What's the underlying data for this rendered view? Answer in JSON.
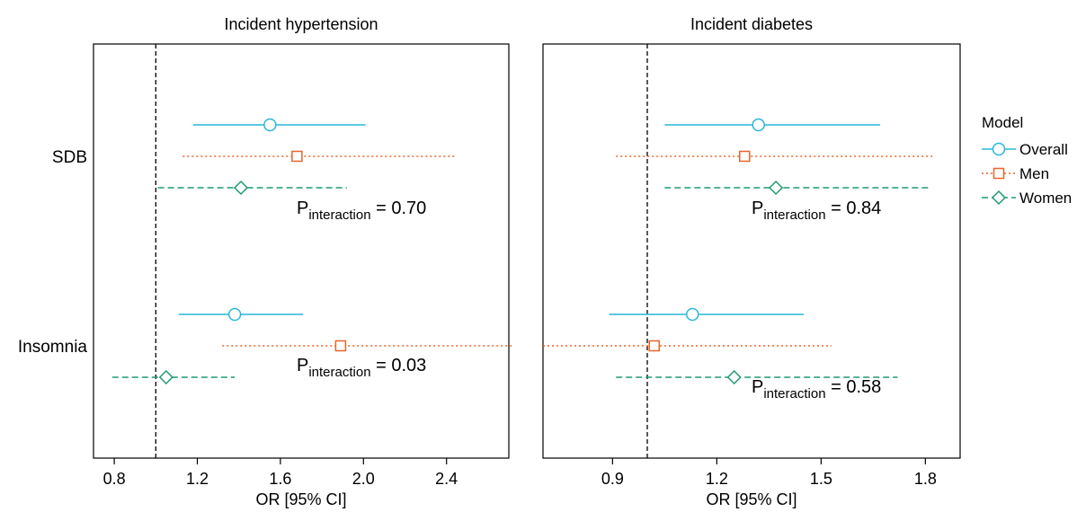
{
  "colors": {
    "overall": "#29B7D9",
    "men": "#E8652A",
    "women": "#1E9A72",
    "axis": "#000000"
  },
  "rows": [
    "SDB",
    "Insomnia"
  ],
  "legend": {
    "title": "Model",
    "items": [
      {
        "label": "Overall",
        "marker": "circle",
        "line": "solid",
        "color": "#29B7D9"
      },
      {
        "label": "Men",
        "marker": "square",
        "line": "dotted",
        "color": "#E8652A"
      },
      {
        "label": "Women",
        "marker": "diamond",
        "line": "dashed",
        "color": "#1E9A72"
      }
    ],
    "placement": "right"
  },
  "chart_data": [
    {
      "type": "forest",
      "title": "Incident hypertension",
      "xlabel": "OR [95% CI]",
      "xlim": [
        0.7,
        2.7
      ],
      "xticks": [
        0.8,
        1.2,
        1.6,
        2.0,
        2.4
      ],
      "xtick_labels": [
        "0.8",
        "1.2",
        "1.6",
        "2.0",
        "2.4"
      ],
      "reference_line": 1.0,
      "groups": [
        {
          "row": "SDB",
          "points": [
            {
              "model": "Overall",
              "or": 1.55,
              "lo": 1.18,
              "hi": 2.01
            },
            {
              "model": "Men",
              "or": 1.68,
              "lo": 1.13,
              "hi": 2.44
            },
            {
              "model": "Women",
              "or": 1.41,
              "lo": 1.01,
              "hi": 1.92
            }
          ],
          "p_prefix": "P",
          "p_sub": "interaction",
          "p_value": " = 0.70"
        },
        {
          "row": "Insomnia",
          "points": [
            {
              "model": "Overall",
              "or": 1.38,
              "lo": 1.11,
              "hi": 1.71
            },
            {
              "model": "Men",
              "or": 1.89,
              "lo": 1.32,
              "hi": 2.72
            },
            {
              "model": "Women",
              "or": 1.05,
              "lo": 0.79,
              "hi": 1.38
            }
          ],
          "p_prefix": "P",
          "p_sub": "interaction",
          "p_value": " = 0.03"
        }
      ]
    },
    {
      "type": "forest",
      "title": "Incident diabetes",
      "xlabel": "OR [95% CI]",
      "xlim": [
        0.7,
        1.9
      ],
      "xticks": [
        0.9,
        1.2,
        1.5,
        1.8
      ],
      "xtick_labels": [
        "0.9",
        "1.2",
        "1.5",
        "1.8"
      ],
      "reference_line": 1.0,
      "groups": [
        {
          "row": "SDB",
          "points": [
            {
              "model": "Overall",
              "or": 1.32,
              "lo": 1.05,
              "hi": 1.67
            },
            {
              "model": "Men",
              "or": 1.28,
              "lo": 0.91,
              "hi": 1.82
            },
            {
              "model": "Women",
              "or": 1.37,
              "lo": 1.05,
              "hi": 1.81
            }
          ],
          "p_prefix": "P",
          "p_sub": "interaction",
          "p_value": " = 0.84"
        },
        {
          "row": "Insomnia",
          "points": [
            {
              "model": "Overall",
              "or": 1.13,
              "lo": 0.89,
              "hi": 1.45
            },
            {
              "model": "Men",
              "or": 1.02,
              "lo": 0.7,
              "hi": 1.53
            },
            {
              "model": "Women",
              "or": 1.25,
              "lo": 0.91,
              "hi": 1.72
            }
          ],
          "p_prefix": "P",
          "p_sub": "interaction",
          "p_value": " = 0.58"
        }
      ]
    }
  ]
}
